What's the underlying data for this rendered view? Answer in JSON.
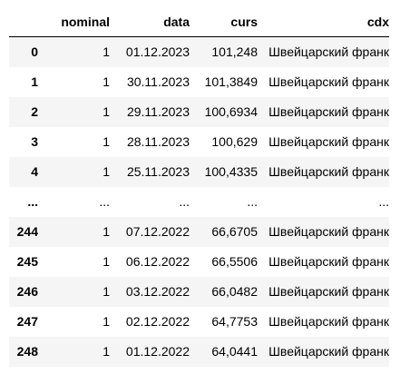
{
  "table": {
    "columns": [
      "",
      "nominal",
      "data",
      "curs",
      "cdx"
    ],
    "rows": [
      {
        "index": "0",
        "nominal": "1",
        "data": "01.12.2023",
        "curs": "101,248",
        "cdx": "Швейцарский франк"
      },
      {
        "index": "1",
        "nominal": "1",
        "data": "30.11.2023",
        "curs": "101,3849",
        "cdx": "Швейцарский франк"
      },
      {
        "index": "2",
        "nominal": "1",
        "data": "29.11.2023",
        "curs": "100,6934",
        "cdx": "Швейцарский франк"
      },
      {
        "index": "3",
        "nominal": "1",
        "data": "28.11.2023",
        "curs": "100,629",
        "cdx": "Швейцарский франк"
      },
      {
        "index": "4",
        "nominal": "1",
        "data": "25.11.2023",
        "curs": "100,4335",
        "cdx": "Швейцарский франк"
      },
      {
        "index": "...",
        "nominal": "...",
        "data": "...",
        "curs": "...",
        "cdx": "..."
      },
      {
        "index": "244",
        "nominal": "1",
        "data": "07.12.2022",
        "curs": "66,6705",
        "cdx": "Швейцарский франк"
      },
      {
        "index": "245",
        "nominal": "1",
        "data": "06.12.2022",
        "curs": "66,5506",
        "cdx": "Швейцарский франк"
      },
      {
        "index": "246",
        "nominal": "1",
        "data": "03.12.2022",
        "curs": "66,0482",
        "cdx": "Швейцарский франк"
      },
      {
        "index": "247",
        "nominal": "1",
        "data": "02.12.2022",
        "curs": "64,7753",
        "cdx": "Швейцарский франк"
      },
      {
        "index": "248",
        "nominal": "1",
        "data": "01.12.2022",
        "curs": "64,0441",
        "cdx": "Швейцарский франк"
      }
    ]
  }
}
